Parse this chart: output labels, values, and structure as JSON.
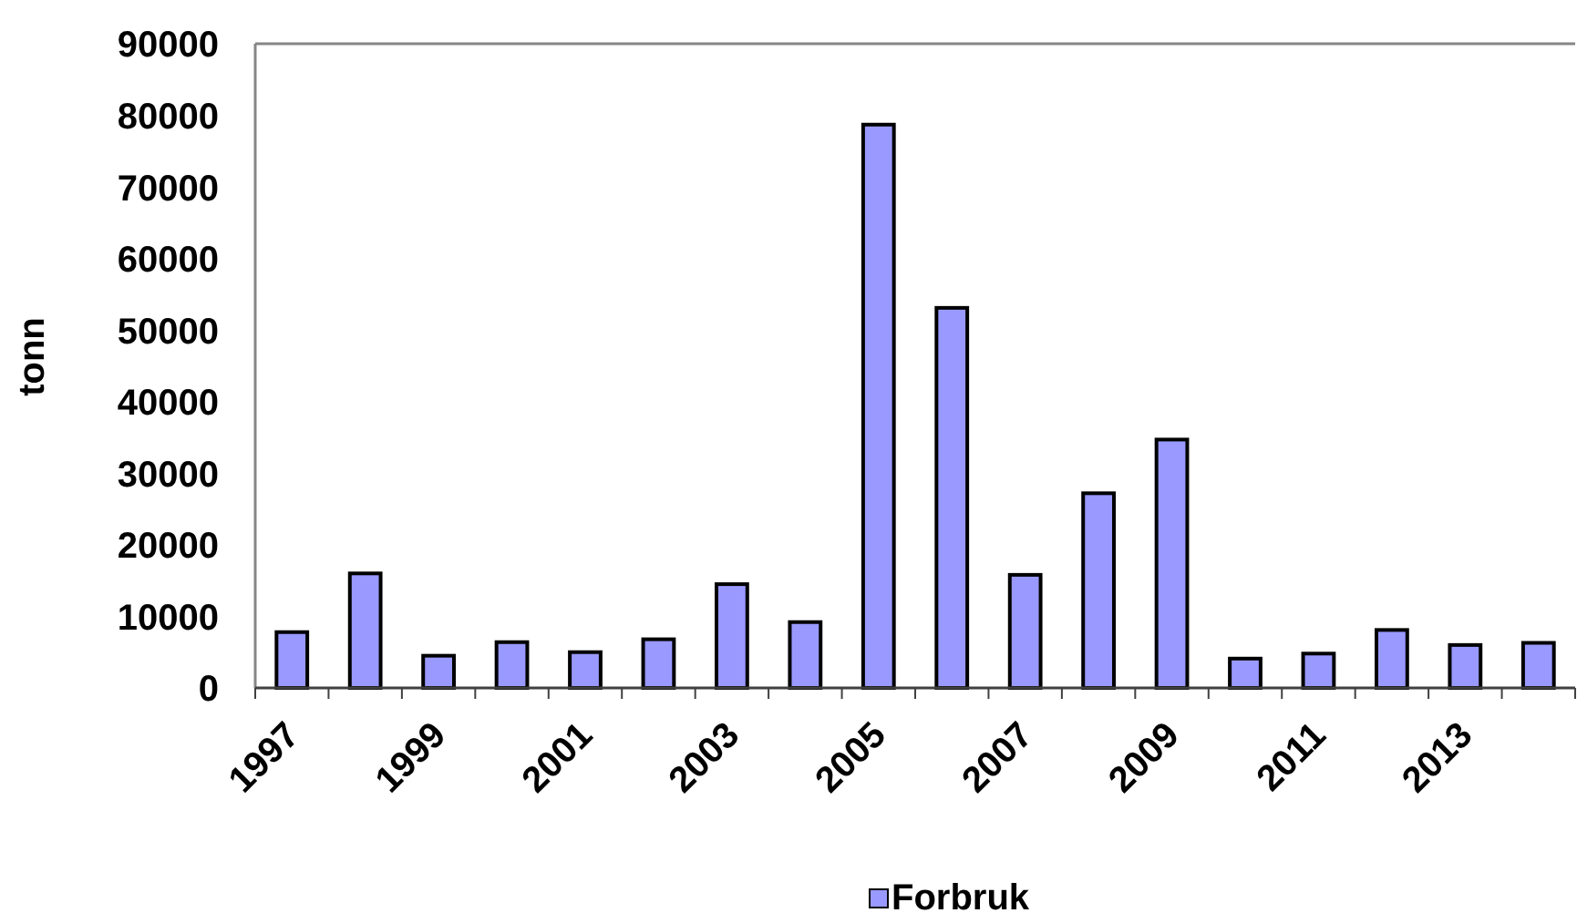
{
  "chart_data": {
    "type": "bar",
    "ylabel": "tonn",
    "categories": [
      "1997",
      null,
      "1999",
      null,
      "2001",
      null,
      "2003",
      null,
      "2005",
      null,
      "2007",
      null,
      "2009",
      null,
      "2011",
      null,
      "2013",
      null
    ],
    "series": [
      {
        "name": "Forbruk",
        "color": "#9999ff",
        "values": [
          7800,
          16000,
          4500,
          6400,
          5000,
          6800,
          14500,
          9200,
          78700,
          53100,
          15800,
          27200,
          34700,
          4100,
          4800,
          8100,
          6000,
          6300
        ]
      }
    ],
    "ylim": [
      0,
      90000
    ],
    "yticks": [
      0,
      10000,
      20000,
      30000,
      40000,
      50000,
      60000,
      70000,
      80000,
      90000
    ],
    "legend": "bottom"
  }
}
